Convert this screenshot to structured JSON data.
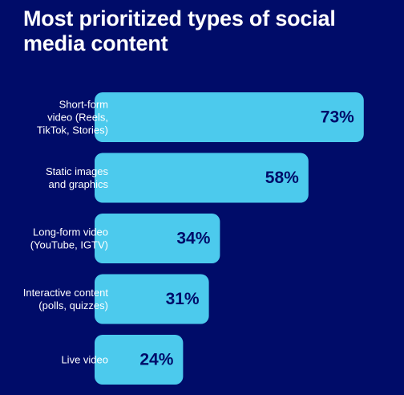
{
  "chart_data": {
    "type": "bar",
    "orientation": "horizontal",
    "title": "Most prioritized types of social media content",
    "categories": [
      [
        "Short-form",
        "video (Reels,",
        "TikTok, Stories)"
      ],
      [
        "Static images",
        "and graphics"
      ],
      [
        "Long-form video",
        "(YouTube, IGTV)"
      ],
      [
        "Interactive content",
        "(polls, quizzes)"
      ],
      [
        "Live video"
      ]
    ],
    "values": [
      73,
      58,
      34,
      31,
      24
    ],
    "value_labels": [
      "73%",
      "58%",
      "34%",
      "31%",
      "24%"
    ],
    "unit": "%",
    "xlim": [
      0,
      100
    ],
    "grid": false,
    "legend": "none",
    "colors": {
      "background": "#000c69",
      "bar": "#4ccaed",
      "value_text": "#000c69",
      "label_text": "#ffffff"
    }
  }
}
